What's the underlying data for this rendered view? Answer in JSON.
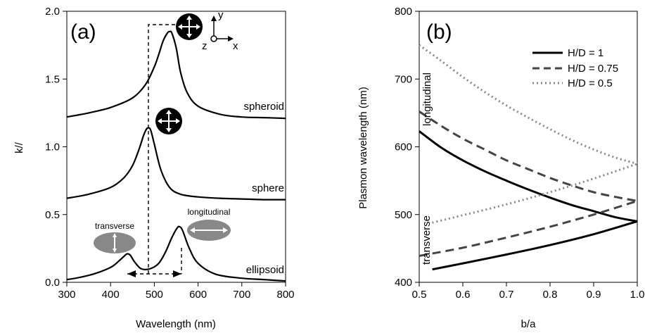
{
  "chart_data": [
    {
      "type": "line",
      "panel_label": "(a)",
      "xlabel": "Wavelength (nm)",
      "ylabel": "k//",
      "xlim": [
        300,
        800
      ],
      "ylim": [
        0.0,
        2.0
      ],
      "x_ticks": [
        "300",
        "400",
        "500",
        "600",
        "700",
        "800"
      ],
      "y_ticks": [
        "0.0",
        "0.5",
        "1.0",
        "1.5",
        "2.0"
      ],
      "series": [
        {
          "name": "spheroid",
          "color": "#000000",
          "x": [
            300,
            350,
            400,
            450,
            480,
            500,
            510,
            520,
            530,
            535,
            540,
            550,
            560,
            575,
            600,
            650,
            700,
            750,
            800
          ],
          "y": [
            1.22,
            1.25,
            1.29,
            1.36,
            1.46,
            1.59,
            1.68,
            1.78,
            1.84,
            1.85,
            1.84,
            1.73,
            1.55,
            1.4,
            1.3,
            1.24,
            1.22,
            1.215,
            1.21
          ]
        },
        {
          "name": "sphere",
          "color": "#000000",
          "x": [
            300,
            350,
            400,
            430,
            450,
            465,
            475,
            482,
            487,
            492,
            500,
            515,
            535,
            560,
            600,
            650,
            700,
            750,
            800
          ],
          "y": [
            0.62,
            0.65,
            0.7,
            0.77,
            0.86,
            0.98,
            1.08,
            1.13,
            1.14,
            1.12,
            1.02,
            0.83,
            0.7,
            0.65,
            0.63,
            0.62,
            0.615,
            0.61,
            0.61
          ]
        },
        {
          "name": "ellipsoid",
          "color": "#000000",
          "x": [
            300,
            320,
            360,
            400,
            420,
            430,
            438,
            445,
            455,
            470,
            490,
            510,
            525,
            540,
            552,
            558,
            565,
            580,
            600,
            640,
            700,
            750,
            800
          ],
          "y": [
            0.02,
            0.03,
            0.06,
            0.11,
            0.16,
            0.19,
            0.21,
            0.2,
            0.15,
            0.1,
            0.1,
            0.14,
            0.22,
            0.33,
            0.4,
            0.41,
            0.38,
            0.25,
            0.14,
            0.06,
            0.03,
            0.02,
            0.01
          ]
        }
      ],
      "annotations": [
        "spheroid",
        "sphere",
        "ellipsoid",
        "transverse",
        "longitudinal",
        "y",
        "z",
        "x"
      ]
    },
    {
      "type": "line",
      "panel_label": "(b)",
      "xlabel": "b/a",
      "ylabel": "Plasmon wavelength (nm)",
      "xlim": [
        0.5,
        1.0
      ],
      "ylim": [
        400,
        800
      ],
      "x_ticks": [
        "0.5",
        "0.6",
        "0.7",
        "0.8",
        "0.9",
        "1.0"
      ],
      "y_ticks": [
        "400",
        "500",
        "600",
        "700",
        "800"
      ],
      "legend_position": "top-right",
      "series": [
        {
          "name": "H/D = 1",
          "style": "solid",
          "color": "#000000",
          "longitudinal": {
            "x": [
              0.5,
              0.55,
              0.6,
              0.65,
              0.7,
              0.75,
              0.8,
              0.85,
              0.9,
              0.95,
              1.0
            ],
            "y": [
              623,
              599,
              580,
              564,
              550,
              537,
              525,
              514,
              505,
              496,
              490
            ]
          },
          "transverse": {
            "x": [
              0.53,
              0.6,
              0.7,
              0.8,
              0.9,
              1.0
            ],
            "y": [
              419,
              428,
              441,
              455,
              471,
              490
            ]
          }
        },
        {
          "name": "H/D = 0.75",
          "style": "dashed",
          "color": "#444444",
          "longitudinal": {
            "x": [
              0.5,
              0.55,
              0.6,
              0.65,
              0.7,
              0.75,
              0.8,
              0.85,
              0.9,
              0.95,
              1.0
            ],
            "y": [
              652,
              631,
              612,
              596,
              580,
              567,
              554,
              543,
              533,
              526,
              520
            ]
          },
          "transverse": {
            "x": [
              0.5,
              0.6,
              0.7,
              0.8,
              0.9,
              1.0
            ],
            "y": [
              439,
              451,
              466,
              482,
              500,
              520
            ]
          }
        },
        {
          "name": "H/D = 0.5",
          "style": "dotted",
          "color": "#888888",
          "longitudinal": {
            "x": [
              0.5,
              0.55,
              0.6,
              0.65,
              0.7,
              0.75,
              0.8,
              0.85,
              0.9,
              0.95,
              1.0
            ],
            "y": [
              750,
              727,
              703,
              681,
              661,
              643,
              626,
              610,
              596,
              584,
              575
            ]
          },
          "transverse": {
            "x": [
              0.53,
              0.6,
              0.7,
              0.8,
              0.9,
              1.0
            ],
            "y": [
              488,
              499,
              515,
              533,
              553,
              575
            ]
          }
        }
      ],
      "annotations": [
        "longitudinal",
        "transverse"
      ]
    }
  ]
}
